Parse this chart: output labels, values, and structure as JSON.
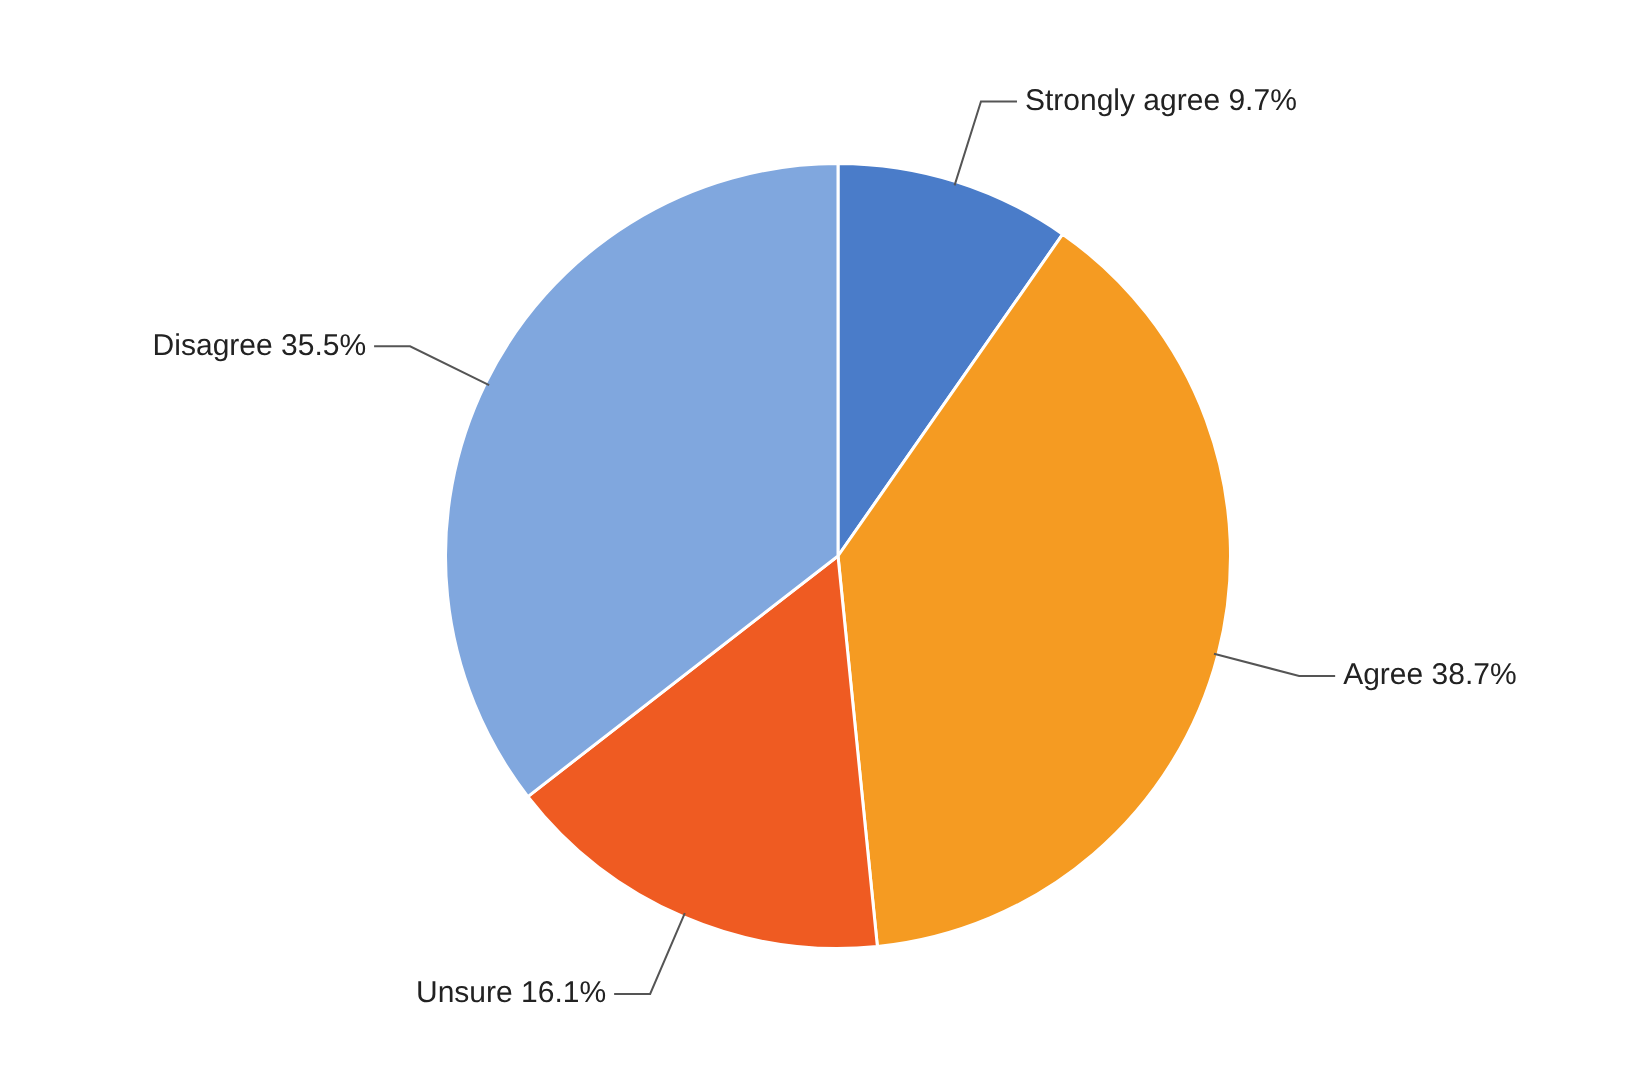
{
  "chart_data": {
    "type": "pie",
    "categories": [
      "Strongly agree",
      "Agree",
      "Unsure",
      "Disagree"
    ],
    "values": [
      9.7,
      38.7,
      16.1,
      35.5
    ],
    "value_labels": [
      "9.7%",
      "38.7%",
      "16.1%",
      "35.5%"
    ],
    "colors": [
      "#4a7cc9",
      "#f59b22",
      "#ef5b22",
      "#80a7de"
    ],
    "legend": false
  }
}
